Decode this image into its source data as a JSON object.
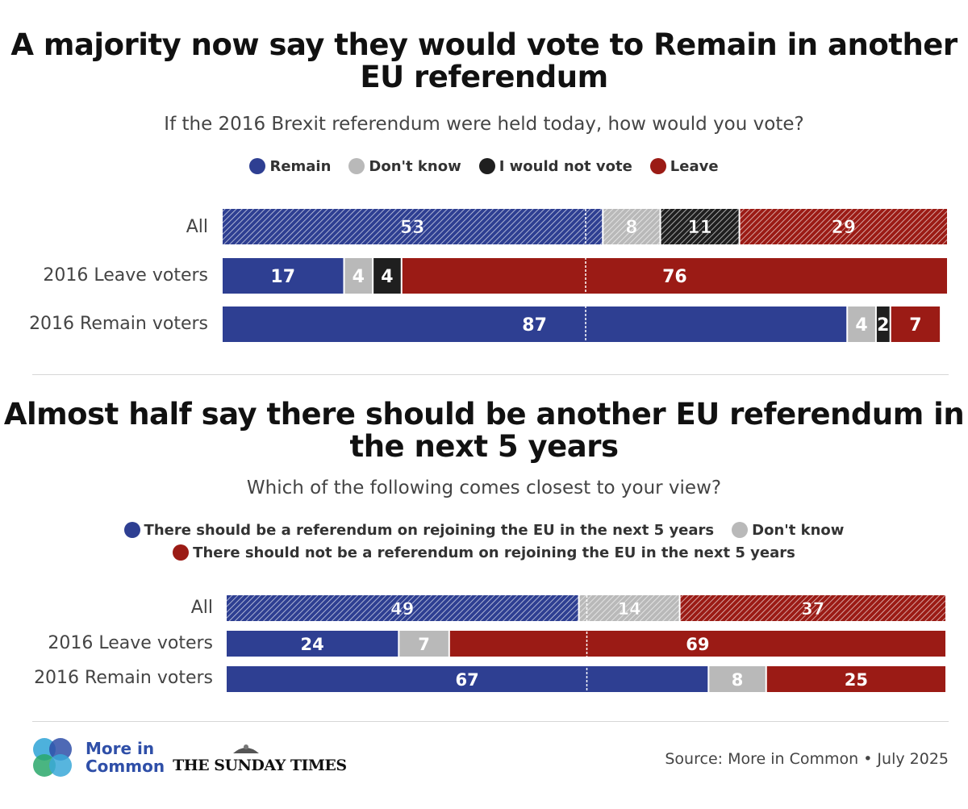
{
  "colors": {
    "remain": "#2e3f92",
    "dont_know": "#b9b9b9",
    "not_vote": "#1f1f1f",
    "leave": "#9b1b15"
  },
  "chart_data": [
    {
      "type": "bar",
      "stacked": true,
      "orientation": "horizontal",
      "title": "A majority now say they would vote to Remain in another EU referendum",
      "subtitle": "If the 2016 Brexit referendum were held today, how would you vote?",
      "categories": [
        "All",
        "2016 Leave voters",
        "2016 Remain voters"
      ],
      "series": [
        {
          "name": "Remain",
          "color": "#2e3f92",
          "values": [
            53,
            17,
            87
          ]
        },
        {
          "name": "Don't know",
          "color": "#b9b9b9",
          "values": [
            8,
            4,
            4
          ]
        },
        {
          "name": "I would not vote",
          "color": "#1f1f1f",
          "values": [
            11,
            4,
            2
          ]
        },
        {
          "name": "Leave",
          "color": "#9b1b15",
          "values": [
            29,
            76,
            7
          ]
        }
      ],
      "xlim": [
        0,
        101
      ],
      "hatched_rows": [
        "All"
      ],
      "midline": true,
      "legend_position": "top"
    },
    {
      "type": "bar",
      "stacked": true,
      "orientation": "horizontal",
      "title": "Almost half say there should be another EU referendum in the next 5 years",
      "subtitle": "Which of the following comes closest to your view?",
      "categories": [
        "All",
        "2016 Leave voters",
        "2016 Remain voters"
      ],
      "series": [
        {
          "name": "There should be a referendum on rejoining the EU in the next 5 years",
          "color": "#2e3f92",
          "values": [
            49,
            24,
            67
          ]
        },
        {
          "name": "Don't know",
          "color": "#b9b9b9",
          "values": [
            14,
            7,
            8
          ]
        },
        {
          "name": "There should not be a referendum on rejoining the EU in the next 5 years",
          "color": "#9b1b15",
          "values": [
            37,
            69,
            25
          ]
        }
      ],
      "xlim": [
        0,
        100
      ],
      "hatched_rows": [
        "All"
      ],
      "midline": true,
      "legend_position": "top"
    }
  ],
  "footer": {
    "brand_line1": "More in",
    "brand_line2": "Common",
    "newspaper": "THE SUNDAY TIMES",
    "source": "Source: More in Common • July 2025"
  }
}
